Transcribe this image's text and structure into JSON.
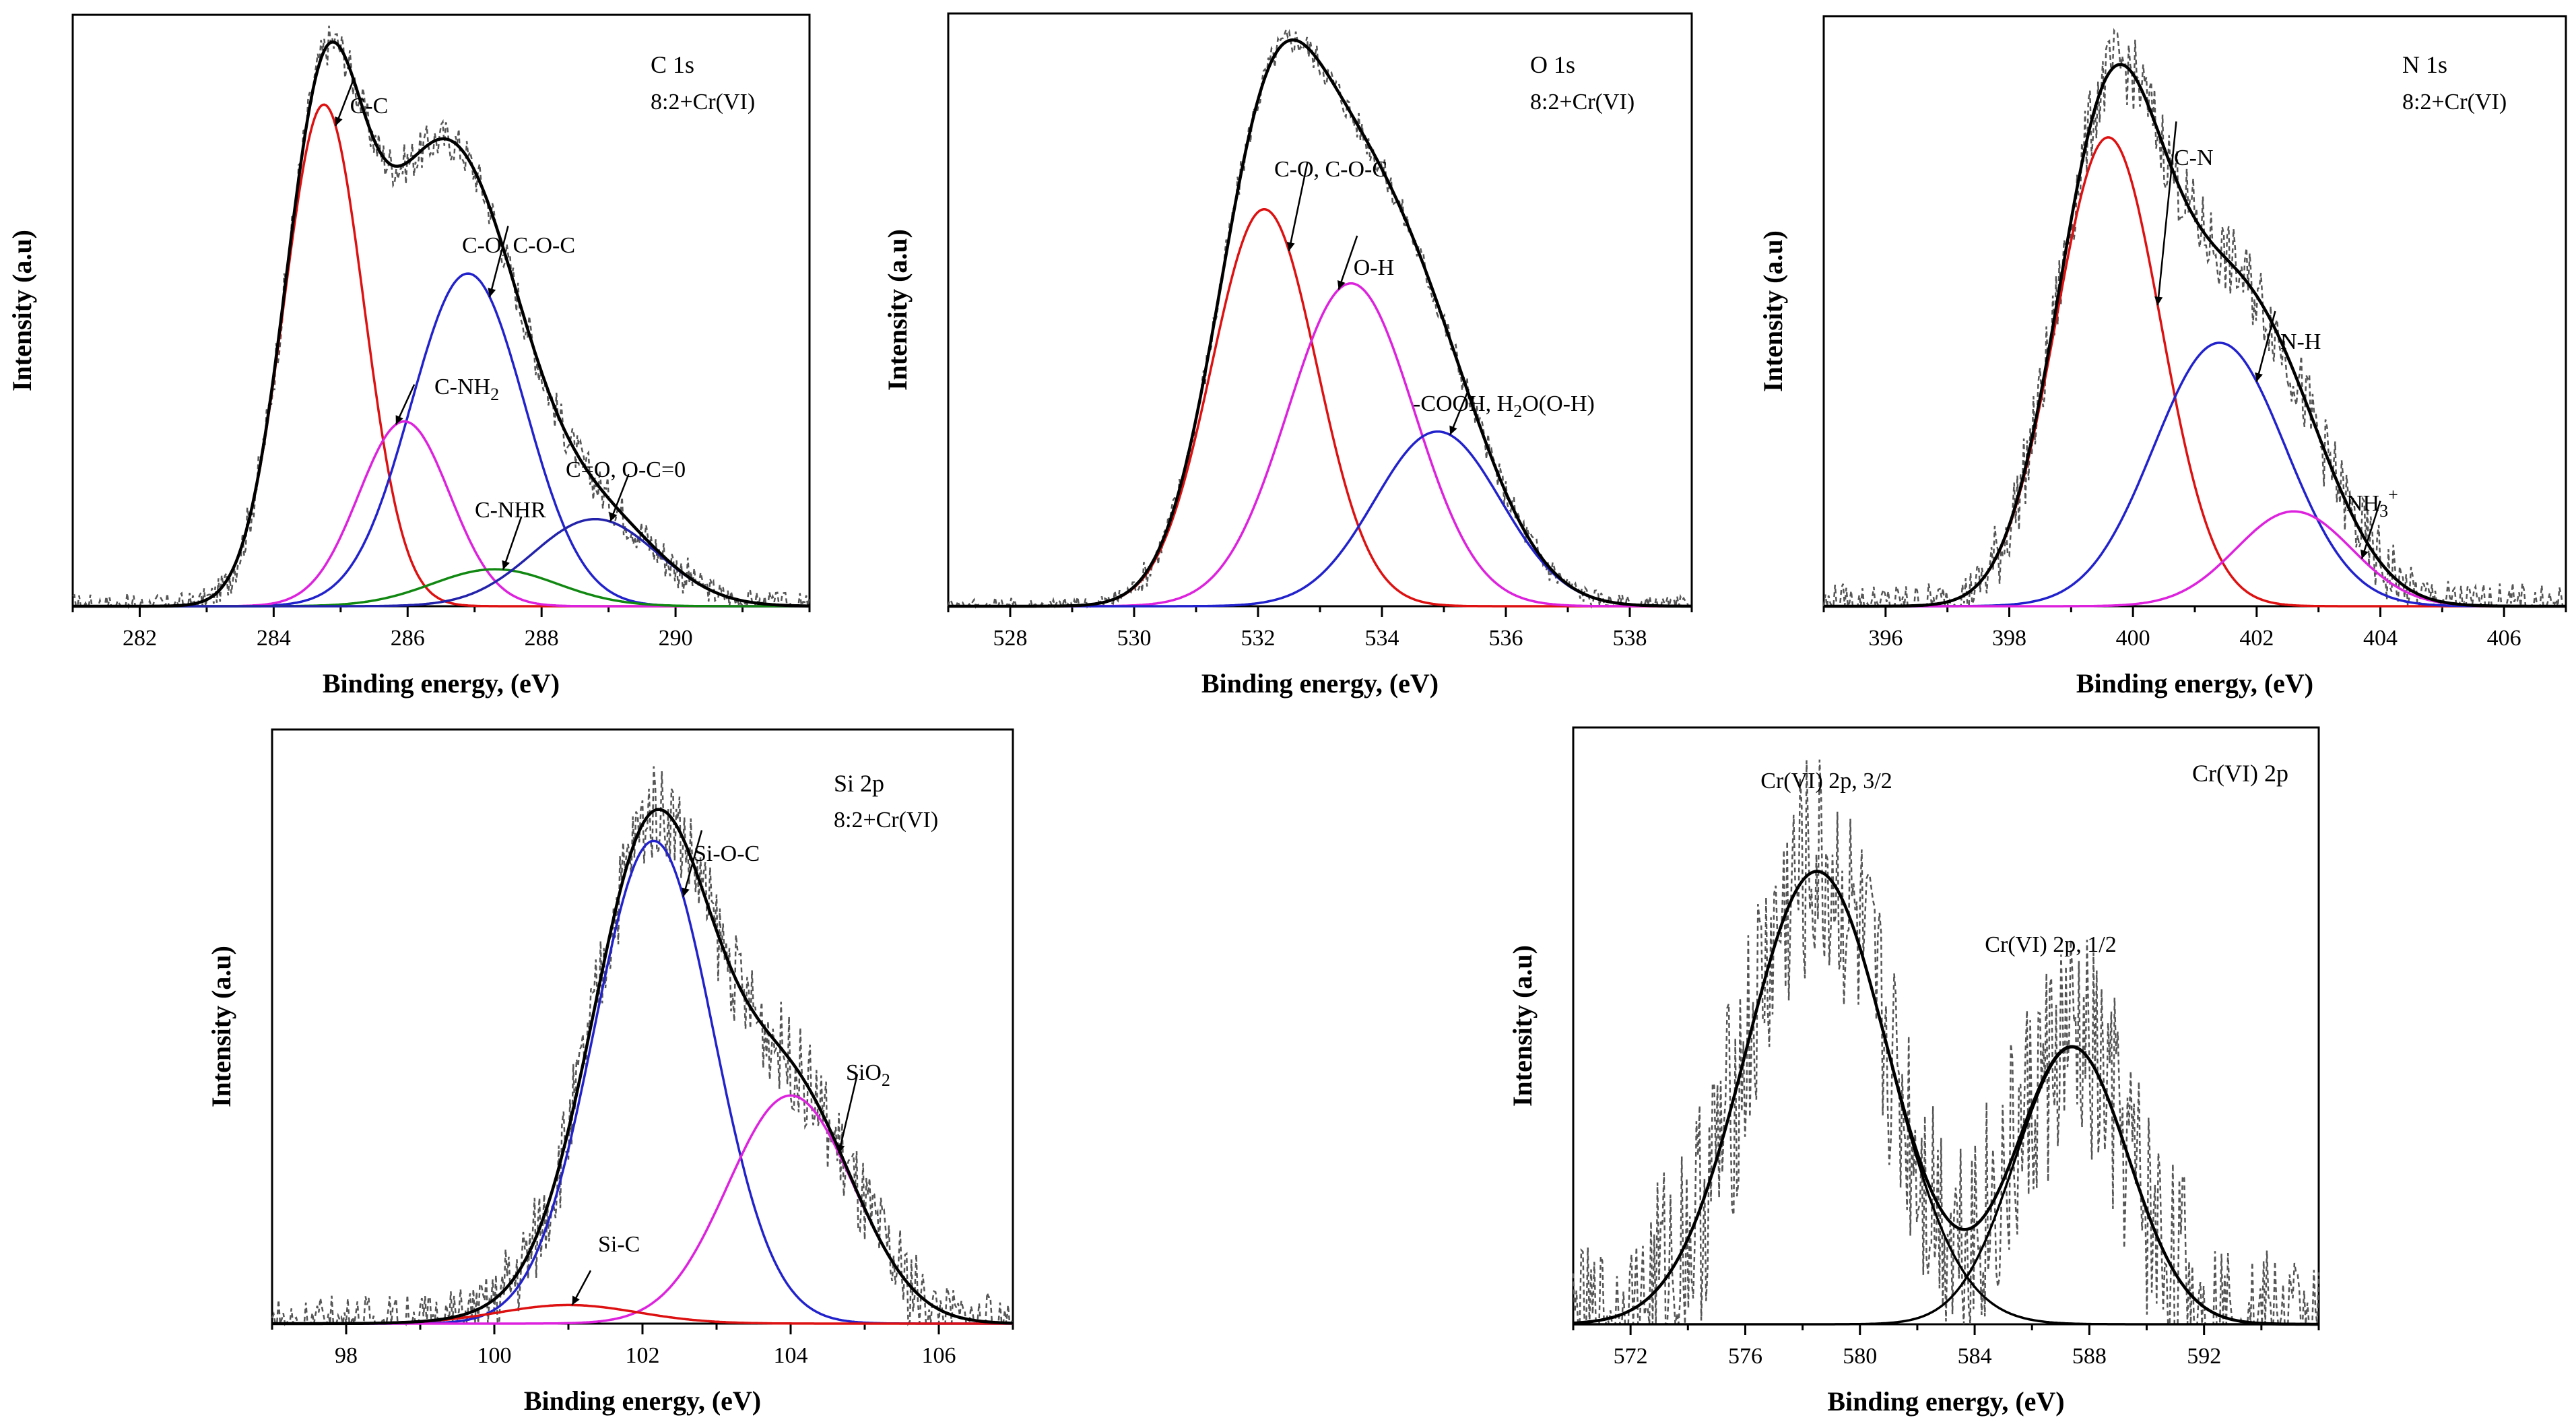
{
  "chart_data": [
    {
      "id": "c1s",
      "type": "line",
      "title": "C 1s",
      "subtitle": "8:2+Cr(VI)",
      "xlabel": "Binding energy, (eV)",
      "ylabel": "Intensity (a.u)",
      "xlim": [
        281,
        292
      ],
      "ylim": [
        0,
        1.12
      ],
      "xticks": [
        282,
        284,
        286,
        288,
        290
      ],
      "peaks": [
        {
          "name": "C-C",
          "label": "C-C",
          "center": 284.75,
          "height": 0.95,
          "fwhm": 1.4,
          "color": "#dd1111",
          "arrow_from": [
            285.2,
            1.0
          ]
        },
        {
          "name": "C-O, C-O-C",
          "label": "C-O, C-O-C",
          "center": 286.9,
          "height": 0.63,
          "fwhm": 2.0,
          "color": "#2222cc",
          "arrow_from": [
            287.5,
            0.72
          ]
        },
        {
          "name": "C-NH2",
          "label": "C-NH",
          "label_sub": "2",
          "center": 285.95,
          "height": 0.35,
          "fwhm": 1.6,
          "color": "#dd22dd",
          "arrow_from": [
            286.1,
            0.42
          ]
        },
        {
          "name": "C-NHR",
          "label": "C-NHR",
          "center": 287.3,
          "height": 0.07,
          "fwhm": 2.2,
          "color": "#118811",
          "arrow_from": [
            287.7,
            0.17
          ]
        },
        {
          "name": "C=O, O-C=0",
          "label": "C=O, O-C=0",
          "center": 288.8,
          "height": 0.165,
          "fwhm": 2.2,
          "color": "#2222aa",
          "arrow_from": [
            289.3,
            0.25
          ]
        }
      ],
      "raw_noise": 0.025
    },
    {
      "id": "o1s",
      "type": "line",
      "title": "O 1s",
      "subtitle": "8:2+Cr(VI)",
      "xlabel": "Binding energy, (eV)",
      "ylabel": "Intensity (a.u)",
      "xlim": [
        527,
        539
      ],
      "ylim": [
        0,
        1.12
      ],
      "xticks": [
        528,
        530,
        532,
        534,
        536,
        538
      ],
      "peaks": [
        {
          "name": "C-O, C-O-C",
          "label": "C-O, C-O-C",
          "center": 532.1,
          "height": 0.75,
          "fwhm": 2.0,
          "color": "#dd1111",
          "arrow_from": [
            532.8,
            0.84
          ]
        },
        {
          "name": "O-H",
          "label": "O-H",
          "center": 533.5,
          "height": 0.61,
          "fwhm": 2.4,
          "color": "#dd22dd",
          "arrow_from": [
            533.6,
            0.7
          ]
        },
        {
          "name": "-COOH, H2O(O-H)",
          "label": "-COOH, H",
          "label_sub": "2",
          "label_tail": "O(O-H)",
          "center": 534.9,
          "height": 0.33,
          "fwhm": 2.4,
          "color": "#2222cc",
          "arrow_from": [
            535.4,
            0.41
          ]
        }
      ],
      "raw_noise": 0.018
    },
    {
      "id": "n1s",
      "type": "line",
      "title": "N 1s",
      "subtitle": "8:2+Cr(VI)",
      "xlabel": "Binding energy, (eV)",
      "ylabel": "Intensity (a.u)",
      "xlim": [
        395,
        407
      ],
      "ylim": [
        0,
        1.12
      ],
      "xticks": [
        396,
        398,
        400,
        402,
        404,
        406
      ],
      "peaks": [
        {
          "name": "C-N",
          "label": "C-N",
          "center": 399.6,
          "height": 0.89,
          "fwhm": 2.0,
          "color": "#dd1111",
          "arrow_from": [
            400.7,
            0.92
          ]
        },
        {
          "name": "N-H",
          "label": "N-H",
          "center": 401.4,
          "height": 0.5,
          "fwhm": 2.5,
          "color": "#2222cc",
          "arrow_from": [
            402.3,
            0.56
          ]
        },
        {
          "name": "NH3+",
          "label": "NH",
          "label_sub": "3",
          "label_sup": "+",
          "center": 402.6,
          "height": 0.18,
          "fwhm": 2.2,
          "color": "#dd22dd",
          "arrow_from": [
            404.0,
            0.2
          ]
        }
      ],
      "raw_noise": 0.045
    },
    {
      "id": "si2p",
      "type": "line",
      "title": "Si 2p",
      "subtitle": "8:2+Cr(VI)",
      "xlabel": "Binding energy, (eV)",
      "ylabel": "Intensity (a.u)",
      "xlim": [
        97,
        107
      ],
      "ylim": [
        0,
        1.12
      ],
      "xticks": [
        98,
        100,
        102,
        104,
        106
      ],
      "peaks": [
        {
          "name": "Si-O-C",
          "label": "Si-O-C",
          "center": 102.15,
          "height": 0.91,
          "fwhm": 1.9,
          "color": "#2222cc",
          "arrow_from": [
            102.8,
            0.93
          ]
        },
        {
          "name": "SiO2",
          "label": "SiO",
          "label_sub": "2",
          "center": 104.0,
          "height": 0.43,
          "fwhm": 2.0,
          "color": "#dd22dd",
          "arrow_from": [
            104.9,
            0.47
          ]
        },
        {
          "name": "Si-C",
          "label": "Si-C",
          "center": 101.0,
          "height": 0.035,
          "fwhm": 2.2,
          "color": "#dd1111",
          "arrow_from": [
            101.3,
            0.1
          ]
        }
      ],
      "raw_noise": 0.055
    },
    {
      "id": "cr2p",
      "type": "line",
      "title": "Cr(VI) 2p",
      "subtitle": "",
      "xlabel": "Binding energy, (eV)",
      "ylabel": "Intensity (a.u)",
      "xlim": [
        570,
        596
      ],
      "ylim": [
        0,
        1.12
      ],
      "xticks": [
        572,
        576,
        580,
        584,
        588,
        592
      ],
      "peaks": [
        {
          "name": "Cr(VI) 2p, 3/2",
          "label": "Cr(VI) 2p, 3/2",
          "center": 578.5,
          "height": 0.85,
          "fwhm": 5.8,
          "color": "#000000",
          "arrow_from": null
        },
        {
          "name": "Cr(VI) 2p, 1/2",
          "label": "Cr(VI) 2p, 1/2",
          "center": 587.4,
          "height": 0.52,
          "fwhm": 4.6,
          "color": "#000000",
          "arrow_from": null
        }
      ],
      "raw_noise": 0.14
    }
  ]
}
